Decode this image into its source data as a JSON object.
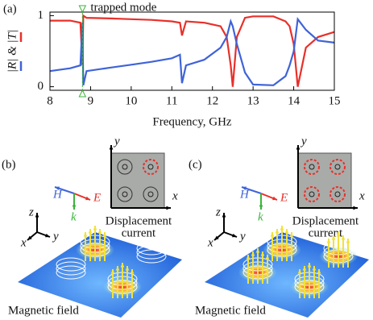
{
  "chart_data": {
    "type": "line",
    "panel_label": "(a)",
    "xlabel": "Frequency, GHz",
    "ylabel": "|R| & |T|",
    "annotation": {
      "text": "trapped mode",
      "x": 8.8
    },
    "x": [
      8,
      8.5,
      8.75,
      8.8,
      8.82,
      8.9,
      9.5,
      10,
      10.5,
      11,
      11.2,
      11.25,
      11.35,
      11.8,
      12.2,
      12.35,
      12.45,
      12.5,
      12.6,
      12.8,
      13,
      13.5,
      13.8,
      13.9,
      14,
      14.1,
      14.3,
      14.6,
      15
    ],
    "series": [
      {
        "color": "#e8302a",
        "values": [
          0.93,
          0.93,
          0.9,
          0.3,
          1.0,
          0.97,
          0.96,
          0.95,
          0.94,
          0.92,
          0.9,
          0.72,
          0.92,
          0.9,
          0.85,
          0.7,
          0.3,
          0.0,
          0.7,
          0.97,
          0.99,
          0.99,
          0.92,
          0.85,
          0.6,
          0.0,
          0.55,
          0.7,
          0.77
        ]
      },
      {
        "color": "#3f63d8",
        "values": [
          0.22,
          0.26,
          0.3,
          0.9,
          0.02,
          0.22,
          0.27,
          0.31,
          0.35,
          0.4,
          0.45,
          0.05,
          0.3,
          0.38,
          0.55,
          0.7,
          0.92,
          0.85,
          0.6,
          0.2,
          0.03,
          0.02,
          0.15,
          0.3,
          0.5,
          0.95,
          0.8,
          0.65,
          0.62
        ]
      }
    ],
    "xlim": [
      8,
      15
    ],
    "xticks": [
      8,
      9,
      10,
      11,
      12,
      13,
      14,
      15
    ],
    "ylim": [
      -0.05,
      1.05
    ],
    "yticks": [
      0,
      1
    ]
  },
  "panels": [
    {
      "label": "(b)",
      "H": "H",
      "E": "E",
      "k": "k",
      "x": "x",
      "y": "y",
      "z": "z",
      "caption_line1": "Displacement",
      "caption_line2": "current",
      "field": "Magnetic field"
    },
    {
      "label": "(c)",
      "H": "H",
      "E": "E",
      "k": "k",
      "x": "x",
      "y": "y",
      "z": "z",
      "caption_line1": "Displacement",
      "caption_line2": "current",
      "field": "Magnetic field"
    }
  ]
}
